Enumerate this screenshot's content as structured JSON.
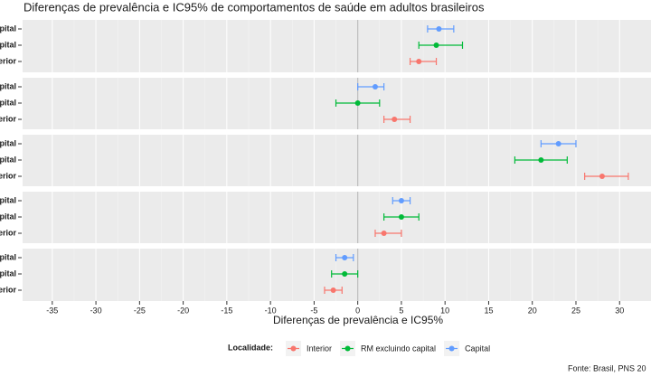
{
  "chart_data": {
    "type": "errorbar",
    "title": "Diferenças de prevalência e IC95% de comportamentos de saúde em adultos brasileiros",
    "x_label": "Diferenças de prevalência e IC95%",
    "legend_title": "Localidade:",
    "source": "Fonte: Brasil, PNS 20",
    "xlim": [
      -38.4,
      33.6
    ],
    "xticks": [
      -35,
      -30,
      -25,
      -20,
      -15,
      -10,
      -5,
      0,
      5,
      10,
      15,
      20,
      25,
      30
    ],
    "grid": true,
    "legend": "bottom",
    "series": [
      {
        "name": "Interior",
        "color": "#F8766D",
        "values": [
          7,
          4.2,
          28,
          3,
          -2.8
        ],
        "lower": [
          6,
          3,
          26,
          2,
          -3.8
        ],
        "upper": [
          9,
          6,
          31,
          5,
          -1.8
        ]
      },
      {
        "name": "RM excluindo capital",
        "color": "#00BA38",
        "values": [
          9,
          0,
          21,
          5,
          -1.5
        ],
        "lower": [
          7,
          -2.5,
          18,
          3,
          -3
        ],
        "upper": [
          12,
          2.5,
          24,
          7,
          0
        ]
      },
      {
        "name": "Capital",
        "color": "#619CFF",
        "values": [
          9.3,
          2,
          23,
          5,
          -1.5
        ],
        "lower": [
          8,
          0,
          21,
          4,
          -2.5
        ],
        "upper": [
          11,
          3,
          25,
          6,
          -0.5
        ]
      }
    ]
  }
}
